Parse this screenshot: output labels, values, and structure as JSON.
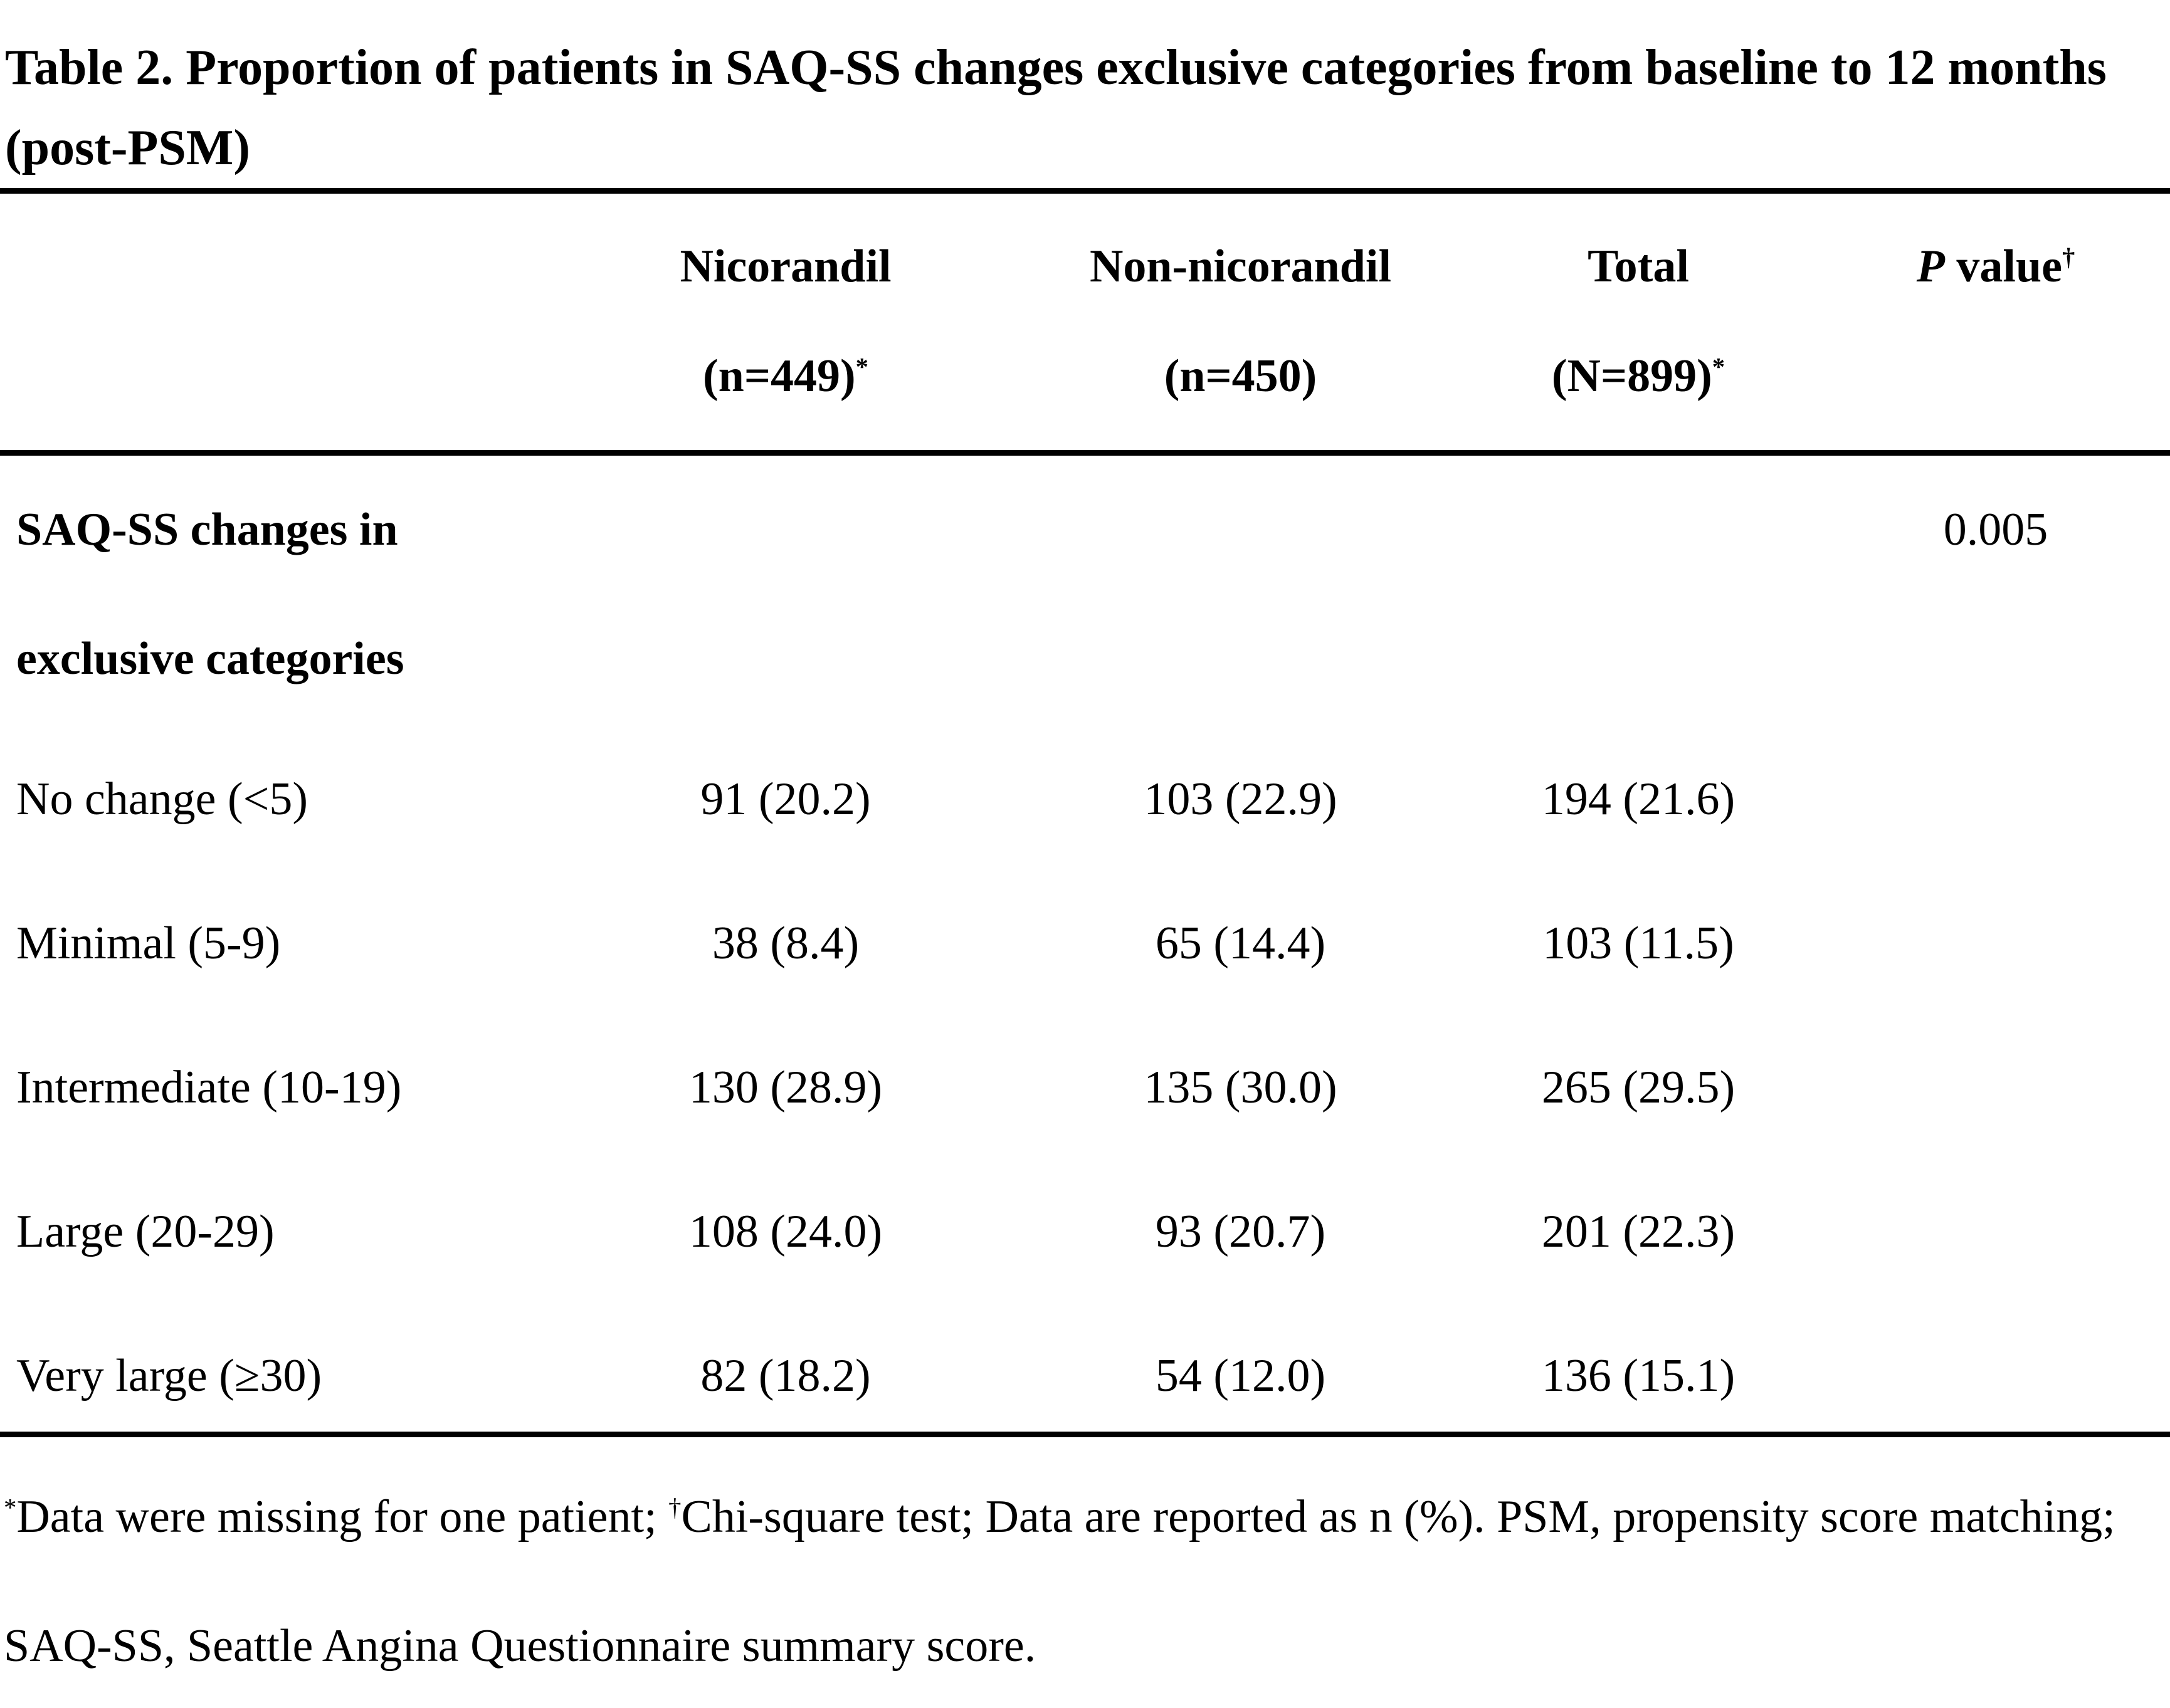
{
  "title": "Table 2. Proportion of patients in SAQ-SS changes exclusive categories from baseline to 12 months (post-PSM)",
  "table": {
    "columns": {
      "nicorandil_line1": "Nicorandil",
      "nicorandil_line2": "(n=449)",
      "nicorandil_star": "*",
      "non_nicorandil_line1": "Non-nicorandil",
      "non_nicorandil_line2": "(n=450)",
      "total_line1": "Total",
      "total_line2": "(N=899)",
      "total_star": "*",
      "p_italic": "P",
      "p_rest": " value",
      "p_dagger": "†"
    },
    "group_row": {
      "label": "SAQ-SS changes in exclusive categories",
      "p_value": "0.005"
    },
    "rows": [
      {
        "label": "No change (<5)",
        "nicorandil": "91 (20.2)",
        "non_nicorandil": "103 (22.9)",
        "total": "194 (21.6)"
      },
      {
        "label": "Minimal (5-9)",
        "nicorandil": "38 (8.4)",
        "non_nicorandil": "65 (14.4)",
        "total": "103 (11.5)"
      },
      {
        "label": "Intermediate (10-19)",
        "nicorandil": "130 (28.9)",
        "non_nicorandil": "135 (30.0)",
        "total": "265 (29.5)"
      },
      {
        "label": "Large (20-29)",
        "nicorandil": "108 (24.0)",
        "non_nicorandil": "93 (20.7)",
        "total": "201 (22.3)"
      },
      {
        "label": "Very large (≥30)",
        "nicorandil": "82 (18.2)",
        "non_nicorandil": "54 (12.0)",
        "total": "136 (15.1)"
      }
    ]
  },
  "footnote": {
    "star": "*",
    "part1": "Data were missing for one patient; ",
    "dagger": "†",
    "part2": "Chi-square test; Data are reported as n (%). PSM, propensity score matching; SAQ-SS, Seattle Angina Questionnaire summary score."
  }
}
